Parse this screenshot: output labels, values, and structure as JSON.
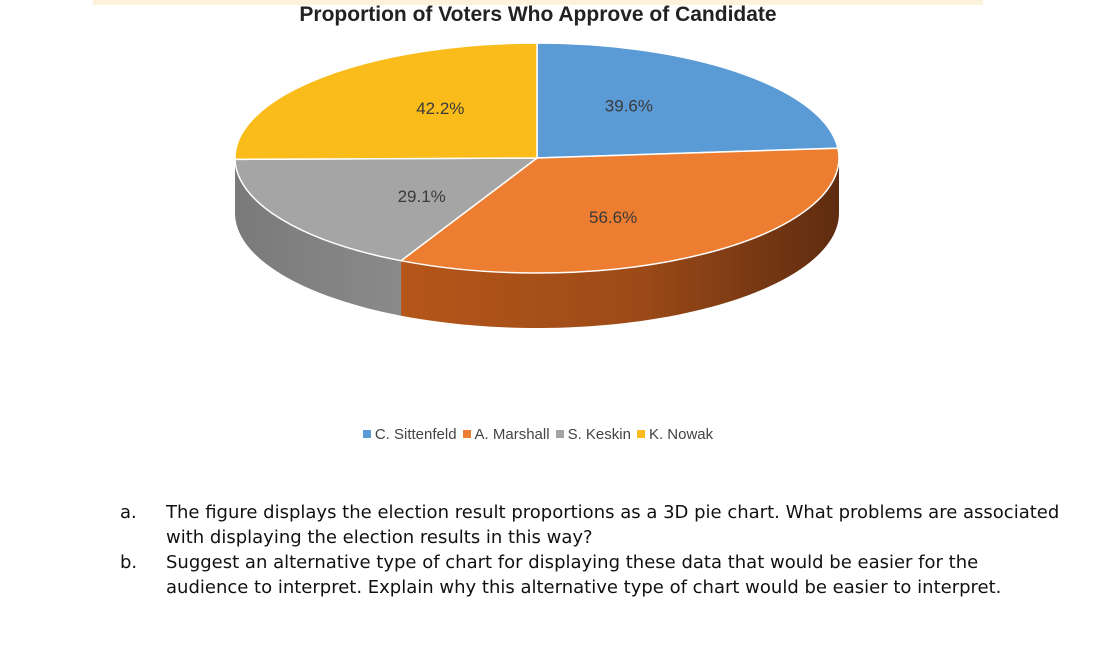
{
  "chart_data": {
    "type": "pie",
    "title": "Proportion of Voters Who Approve of Candidate",
    "style": "3d",
    "legend_position": "bottom",
    "categories": [
      "C. Sittenfeld",
      "A. Marshall",
      "S. Keskin",
      "K. Nowak"
    ],
    "values": [
      39.6,
      56.6,
      29.1,
      42.2
    ],
    "labels": [
      "39.6%",
      "56.6%",
      "29.1%",
      "42.2%"
    ],
    "colors": [
      "#5b9bd5",
      "#ed7d31",
      "#a5a5a5",
      "#f9bc1a"
    ]
  },
  "questions": [
    {
      "letter": "a.",
      "text": "The figure displays the election result proportions as a 3D pie chart. What problems are associated with displaying the election results in this way?"
    },
    {
      "letter": "b.",
      "text": "Suggest an alternative type of chart for displaying these data that would be easier for the audience to interpret. Explain why this alternative type of chart would be easier to interpret."
    }
  ]
}
